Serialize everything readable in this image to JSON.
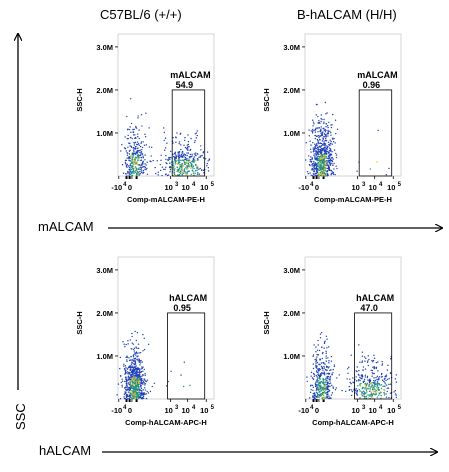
{
  "column_titles": [
    "C57BL/6 (+/+)",
    "B-hALCAM (H/H)"
  ],
  "row_axis_labels": [
    "mALCAM",
    "hALCAM"
  ],
  "ssc_label": "SSC",
  "colors": {
    "dots": "#1f3fb6",
    "dots_dense": "#1b8f8f",
    "hot": "#f0c020",
    "ink": "#000000"
  },
  "chart_data": [
    {
      "type": "scatter",
      "row": 0,
      "col": 0,
      "gate_label": "mALCAM",
      "gate_value": "54.9",
      "xlabel": "Comp-mALCAM-PE-H",
      "ylabel": "SSC-H",
      "y_ticks": [
        "1.0M",
        "2.0M",
        "3.0M"
      ],
      "y_tick_values": [
        1000000,
        2000000,
        3000000
      ],
      "x_ticks": [
        "-10",
        "0",
        "10",
        "10",
        "10"
      ],
      "x_tick_exponents": [
        "4",
        "",
        "3",
        "4",
        "5"
      ],
      "x_scale": "biexponential",
      "ylim": [
        0,
        3300000
      ],
      "gate_x": [
        2.5,
        4.6
      ],
      "gate_y": [
        0,
        2000000
      ],
      "population": {
        "negative_fraction": 0.45,
        "positive_fraction": 0.55
      }
    },
    {
      "type": "scatter",
      "row": 0,
      "col": 1,
      "gate_label": "mALCAM",
      "gate_value": "0.96",
      "xlabel": "Comp-mALCAM-PE-H",
      "ylabel": "SSC-H",
      "y_ticks": [
        "1.0M",
        "2.0M",
        "3.0M"
      ],
      "y_tick_values": [
        1000000,
        2000000,
        3000000
      ],
      "x_ticks": [
        "-10",
        "0",
        "10",
        "10",
        "10"
      ],
      "x_tick_exponents": [
        "4",
        "",
        "3",
        "4",
        "5"
      ],
      "x_scale": "biexponential",
      "ylim": [
        0,
        3300000
      ],
      "gate_x": [
        2.5,
        4.6
      ],
      "gate_y": [
        0,
        2000000
      ],
      "population": {
        "negative_fraction": 0.99,
        "positive_fraction": 0.01
      }
    },
    {
      "type": "scatter",
      "row": 1,
      "col": 0,
      "gate_label": "hALCAM",
      "gate_value": "0.95",
      "xlabel": "Comp-hALCAM-APC-H",
      "ylabel": "SSC-H",
      "y_ticks": [
        "1.0M",
        "2.0M",
        "3.0M"
      ],
      "y_tick_values": [
        1000000,
        2000000,
        3000000
      ],
      "x_ticks": [
        "-10",
        "0",
        "10",
        "10",
        "10"
      ],
      "x_tick_exponents": [
        "4",
        "",
        "3",
        "4",
        "5"
      ],
      "x_scale": "biexponential",
      "ylim": [
        0,
        3300000
      ],
      "gate_x": [
        2.2,
        4.6
      ],
      "gate_y": [
        0,
        2000000
      ],
      "population": {
        "negative_fraction": 0.99,
        "positive_fraction": 0.01
      }
    },
    {
      "type": "scatter",
      "row": 1,
      "col": 1,
      "gate_label": "hALCAM",
      "gate_value": "47.0",
      "xlabel": "Comp-hALCAM-APC-H",
      "ylabel": "SSC-H",
      "y_ticks": [
        "1.0M",
        "2.0M",
        "3.0M"
      ],
      "y_tick_values": [
        1000000,
        2000000,
        3000000
      ],
      "x_ticks": [
        "-10",
        "0",
        "10",
        "10",
        "10"
      ],
      "x_tick_exponents": [
        "4",
        "",
        "3",
        "4",
        "5"
      ],
      "x_scale": "biexponential",
      "ylim": [
        0,
        3300000
      ],
      "gate_x": [
        2.2,
        4.6
      ],
      "gate_y": [
        0,
        2000000
      ],
      "population": {
        "negative_fraction": 0.53,
        "positive_fraction": 0.47
      }
    }
  ]
}
